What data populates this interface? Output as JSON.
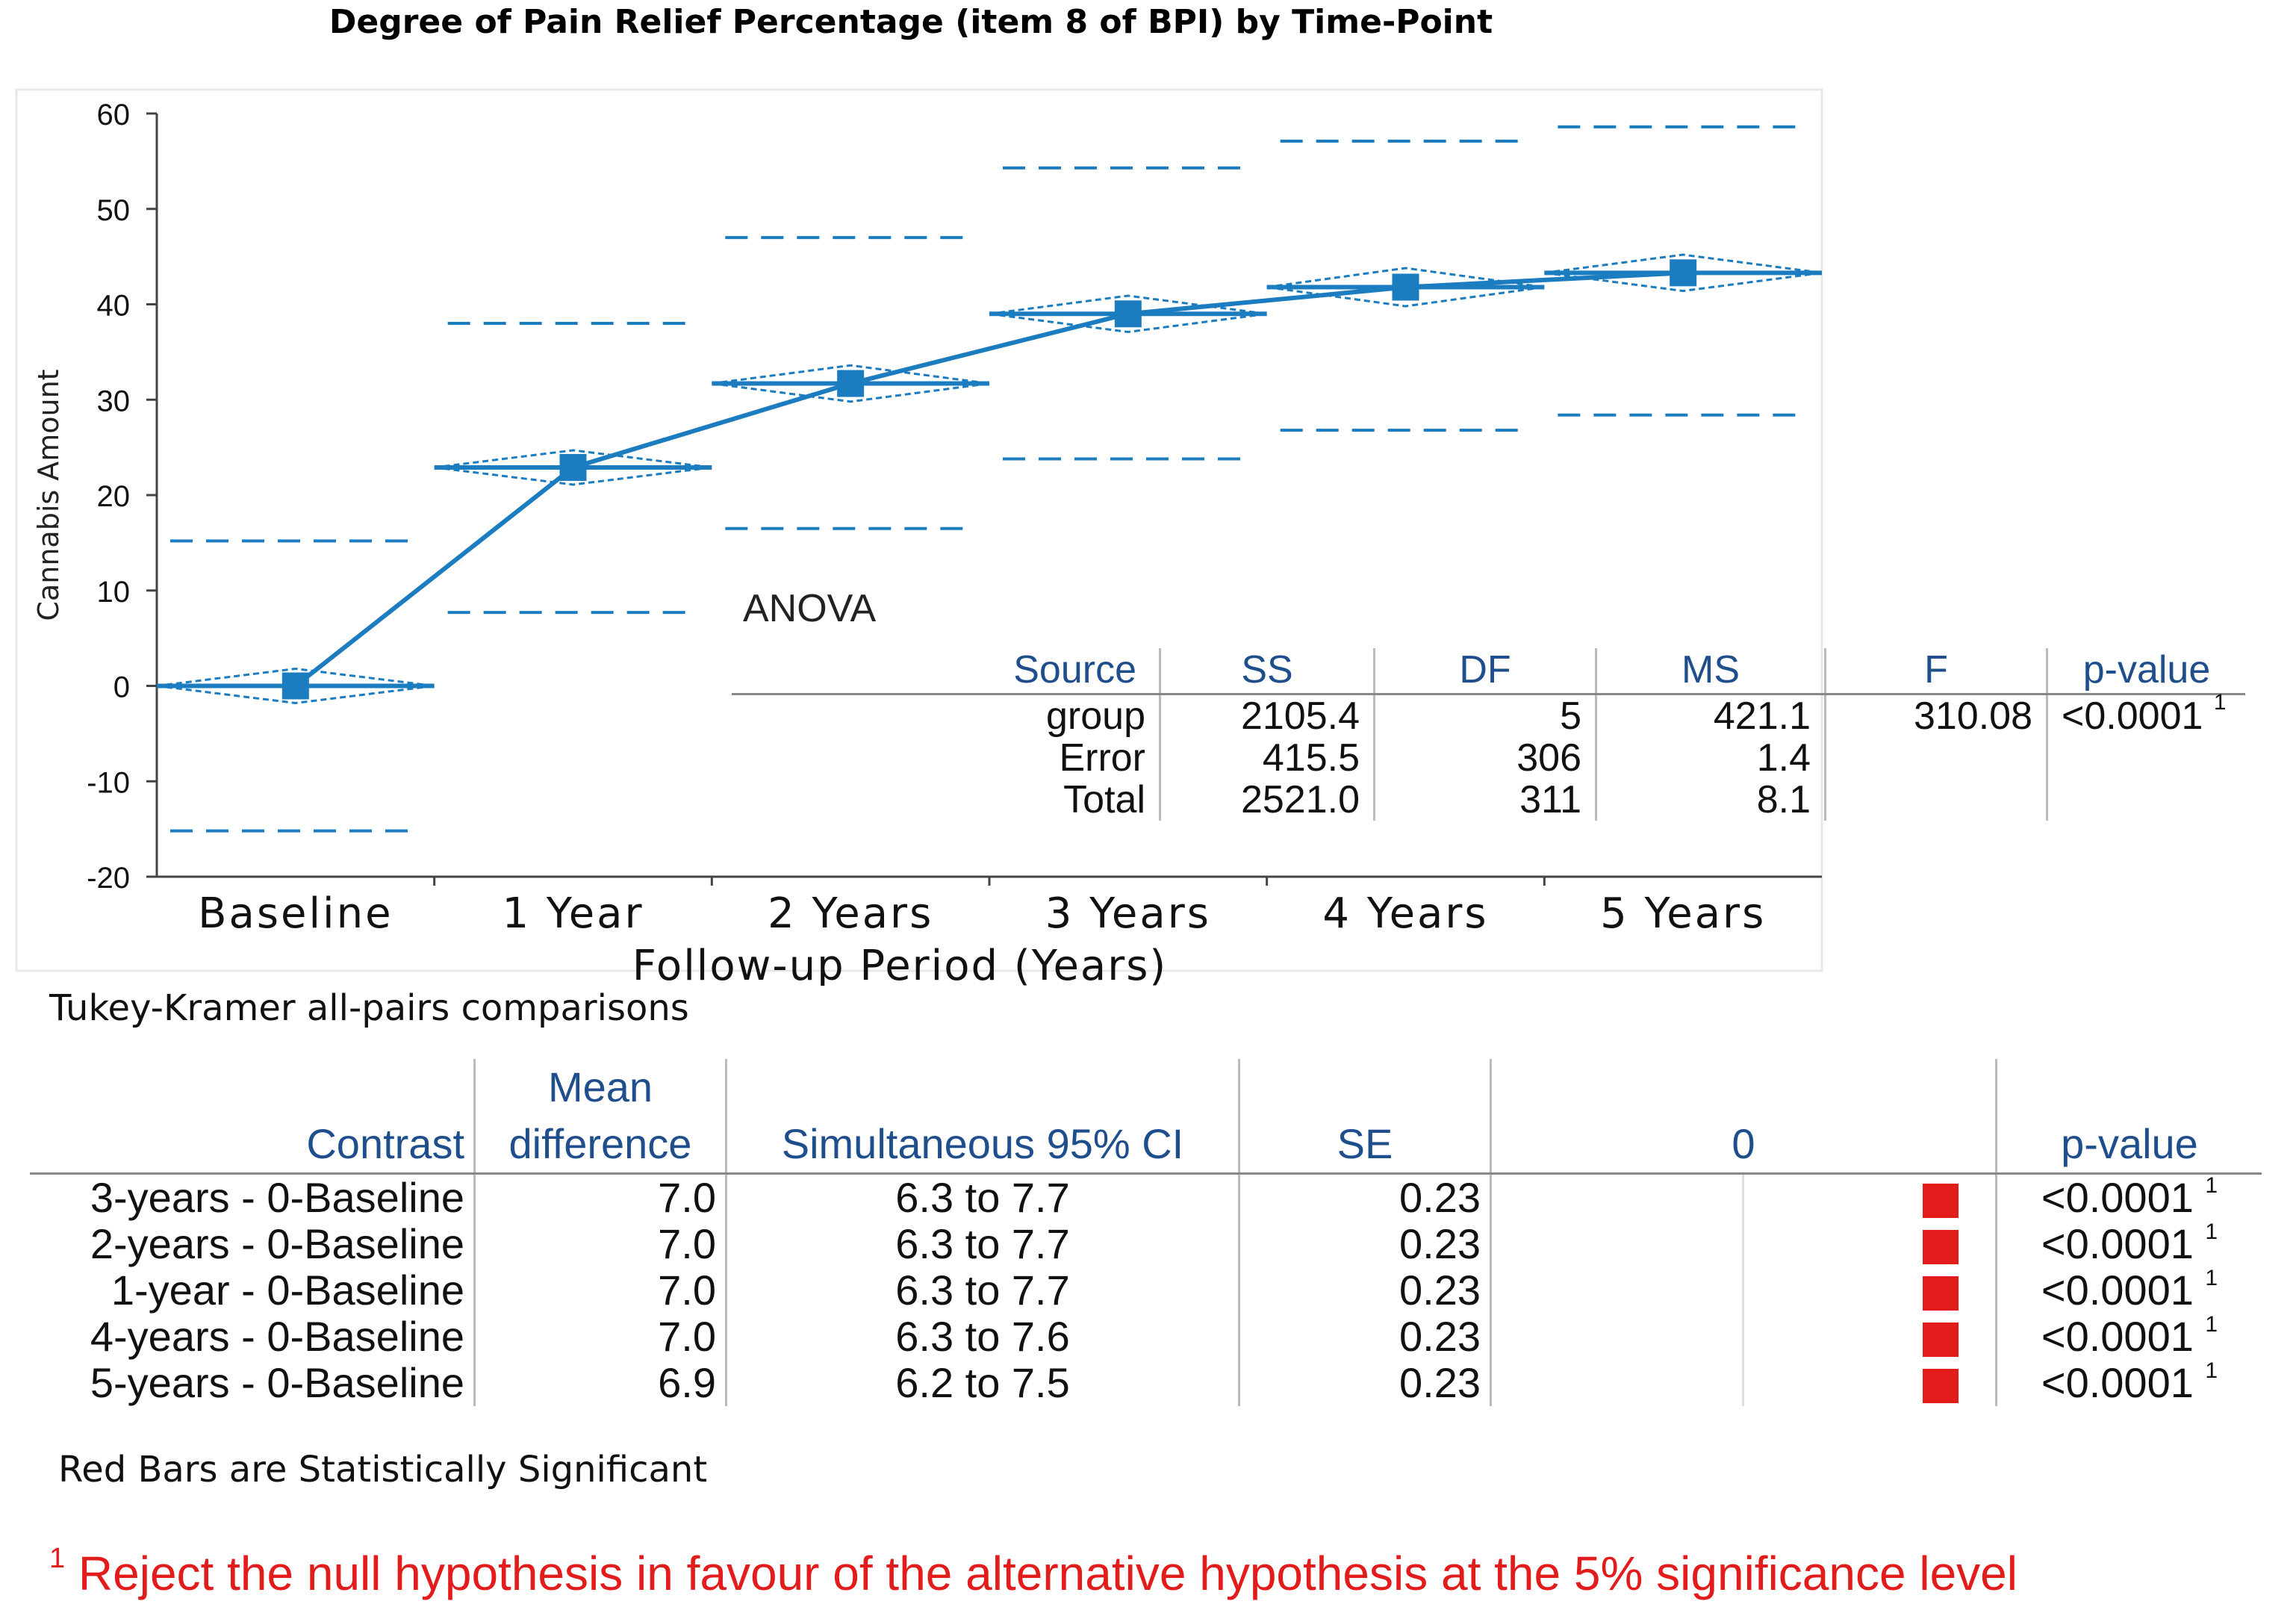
{
  "title": "Degree of Pain Relief Percentage (item 8 of BPI) by Time-Point",
  "chart_data": {
    "type": "line",
    "title": "Degree of Pain Relief Percentage (item 8 of BPI) by Time-Point",
    "xlabel": "Follow-up Period (Years)",
    "ylabel": "Cannabis Amount",
    "ylim": [
      -20,
      60
    ],
    "yticks": [
      60,
      50,
      40,
      30,
      20,
      10,
      0,
      -10,
      -20
    ],
    "categories": [
      "Baseline",
      "1 Year",
      "2 Years",
      "3 Years",
      "4 Years",
      "5 Years"
    ],
    "series": [
      {
        "name": "Mean",
        "values": [
          0,
          22.9,
          31.7,
          39,
          41.8,
          43.3
        ]
      }
    ],
    "ci_half_width": [
      1.8,
      1.8,
      1.9,
      1.9,
      2.0,
      1.9
    ],
    "upper_band": [
      15.2,
      38,
      47,
      54.3,
      57.1,
      58.6
    ],
    "lower_band": [
      -15.2,
      7.7,
      16.5,
      23.8,
      26.8,
      28.4
    ],
    "colors": {
      "line": "#1c7cc0"
    }
  },
  "anova": {
    "label": "ANOVA",
    "headers": [
      "Source",
      "SS",
      "DF",
      "MS",
      "F",
      "p-value"
    ],
    "rows": [
      {
        "source": "group",
        "ss": "2105.4",
        "df": "5",
        "ms": "421.1",
        "f": "310.08",
        "p": "<0.0001",
        "sup": "1"
      },
      {
        "source": "Error",
        "ss": "415.5",
        "df": "306",
        "ms": "1.4",
        "f": "",
        "p": "",
        "sup": ""
      },
      {
        "source": "Total",
        "ss": "2521.0",
        "df": "311",
        "ms": "8.1",
        "f": "",
        "p": "",
        "sup": ""
      }
    ]
  },
  "tukey": {
    "title": "Tukey-Kramer all-pairs comparisons",
    "headers": {
      "contrast": "Contrast",
      "mean_line1": "Mean",
      "mean_line2": "difference",
      "ci": "Simultaneous 95% CI",
      "se": "SE",
      "zero": "0",
      "p": "p-value"
    },
    "rows": [
      {
        "contrast": "3-years - 0-Baseline",
        "mean": "7.0",
        "ci": "6.3 to 7.7",
        "se": "0.23",
        "p": "<0.0001",
        "sup": "1"
      },
      {
        "contrast": "2-years - 0-Baseline",
        "mean": "7.0",
        "ci": "6.3 to 7.7",
        "se": "0.23",
        "p": "<0.0001",
        "sup": "1"
      },
      {
        "contrast": "1-year - 0-Baseline",
        "mean": "7.0",
        "ci": "6.3 to 7.7",
        "se": "0.23",
        "p": "<0.0001",
        "sup": "1"
      },
      {
        "contrast": "4-years - 0-Baseline",
        "mean": "7.0",
        "ci": "6.3 to 7.6",
        "se": "0.23",
        "p": "<0.0001",
        "sup": "1"
      },
      {
        "contrast": "5-years - 0-Baseline",
        "mean": "6.9",
        "ci": "6.2 to 7.5",
        "se": "0.23",
        "p": "<0.0001",
        "sup": "1"
      }
    ]
  },
  "notes": {
    "red_bars": "Red Bars are Statistically Significant",
    "footnote_sup": "1",
    "footnote": "Reject the null hypothesis in favour of the alternative hypothesis at the 5% significance level"
  }
}
